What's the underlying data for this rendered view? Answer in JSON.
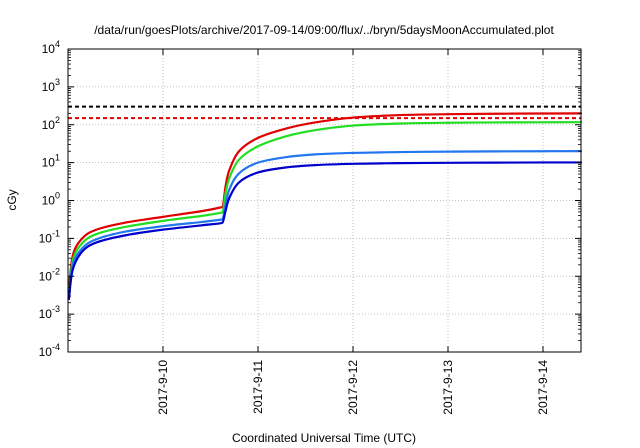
{
  "chart_data": {
    "type": "line",
    "title": "/data/run/goesPlots/archive/2017-09-14/09:00/flux/../bryn/5daysMoonAccumulated.plot",
    "xlabel": "Coordinated Universal Time (UTC)",
    "ylabel": "cGy",
    "yscale": "log",
    "ylim": [
      0.0001,
      10000
    ],
    "xlim": [
      0,
      5.4
    ],
    "grid": true,
    "x_ticks": [
      {
        "x": 1,
        "label": "2017-9-10"
      },
      {
        "x": 2,
        "label": "2017-9-11"
      },
      {
        "x": 3,
        "label": "2017-9-12"
      },
      {
        "x": 4,
        "label": "2017-9-13"
      },
      {
        "x": 5,
        "label": "2017-9-14"
      }
    ],
    "y_ticks": [
      {
        "base": "10",
        "exp": "-4",
        "value": 0.0001
      },
      {
        "base": "10",
        "exp": "-3",
        "value": 0.001
      },
      {
        "base": "10",
        "exp": "-2",
        "value": 0.01
      },
      {
        "base": "10",
        "exp": "-1",
        "value": 0.1
      },
      {
        "base": "10",
        "exp": "0",
        "value": 1
      },
      {
        "base": "10",
        "exp": "1",
        "value": 10
      },
      {
        "base": "10",
        "exp": "2",
        "value": 100
      },
      {
        "base": "10",
        "exp": "3",
        "value": 1000
      },
      {
        "base": "10",
        "exp": "4",
        "value": 10000
      }
    ],
    "reference_lines": [
      {
        "y": 300,
        "color": "#000000",
        "style": "dashed"
      },
      {
        "y": 150,
        "color": "#e00000",
        "style": "dashed"
      }
    ],
    "series": [
      {
        "color": "#e00000",
        "x": [
          0.01,
          0.05,
          0.15,
          0.3,
          0.6,
          1.0,
          1.4,
          1.6,
          1.63,
          1.66,
          1.7,
          1.8,
          2.0,
          2.3,
          2.6,
          3.0,
          3.5,
          4.0,
          4.5,
          5.0,
          5.4
        ],
        "values": [
          0.004,
          0.035,
          0.1,
          0.17,
          0.26,
          0.37,
          0.52,
          0.65,
          0.7,
          2.5,
          6.5,
          20,
          45,
          80,
          115,
          155,
          180,
          190,
          195,
          198,
          200
        ]
      },
      {
        "color": "#22dd22",
        "x": [
          0.01,
          0.05,
          0.15,
          0.3,
          0.6,
          1.0,
          1.4,
          1.6,
          1.63,
          1.66,
          1.7,
          1.8,
          2.0,
          2.3,
          2.6,
          3.0,
          3.5,
          4.0,
          4.5,
          5.0,
          5.4
        ],
        "values": [
          0.003,
          0.026,
          0.075,
          0.13,
          0.2,
          0.29,
          0.39,
          0.47,
          0.5,
          1.6,
          4.0,
          12,
          27,
          50,
          72,
          95,
          108,
          113,
          115,
          116,
          117
        ]
      },
      {
        "color": "#2277ee",
        "x": [
          0.01,
          0.05,
          0.15,
          0.3,
          0.6,
          1.0,
          1.4,
          1.6,
          1.63,
          1.66,
          1.7,
          1.8,
          2.0,
          2.3,
          2.6,
          3.0,
          3.5,
          4.0,
          4.5,
          5.0,
          5.4
        ],
        "values": [
          0.0028,
          0.02,
          0.055,
          0.095,
          0.15,
          0.21,
          0.27,
          0.31,
          0.33,
          0.8,
          2.0,
          5.2,
          10,
          14,
          16.5,
          18,
          19,
          19.5,
          19.8,
          20,
          20.1
        ]
      },
      {
        "color": "#0000cc",
        "x": [
          0.01,
          0.05,
          0.15,
          0.3,
          0.6,
          1.0,
          1.4,
          1.6,
          1.63,
          1.66,
          1.7,
          1.8,
          2.0,
          2.3,
          2.6,
          3.0,
          3.5,
          4.0,
          4.5,
          5.0,
          5.4
        ],
        "values": [
          0.0025,
          0.015,
          0.045,
          0.078,
          0.12,
          0.17,
          0.22,
          0.25,
          0.27,
          0.55,
          1.2,
          3.0,
          5.5,
          7.5,
          8.6,
          9.3,
          9.7,
          9.9,
          10.0,
          10.1,
          10.1
        ]
      }
    ]
  }
}
